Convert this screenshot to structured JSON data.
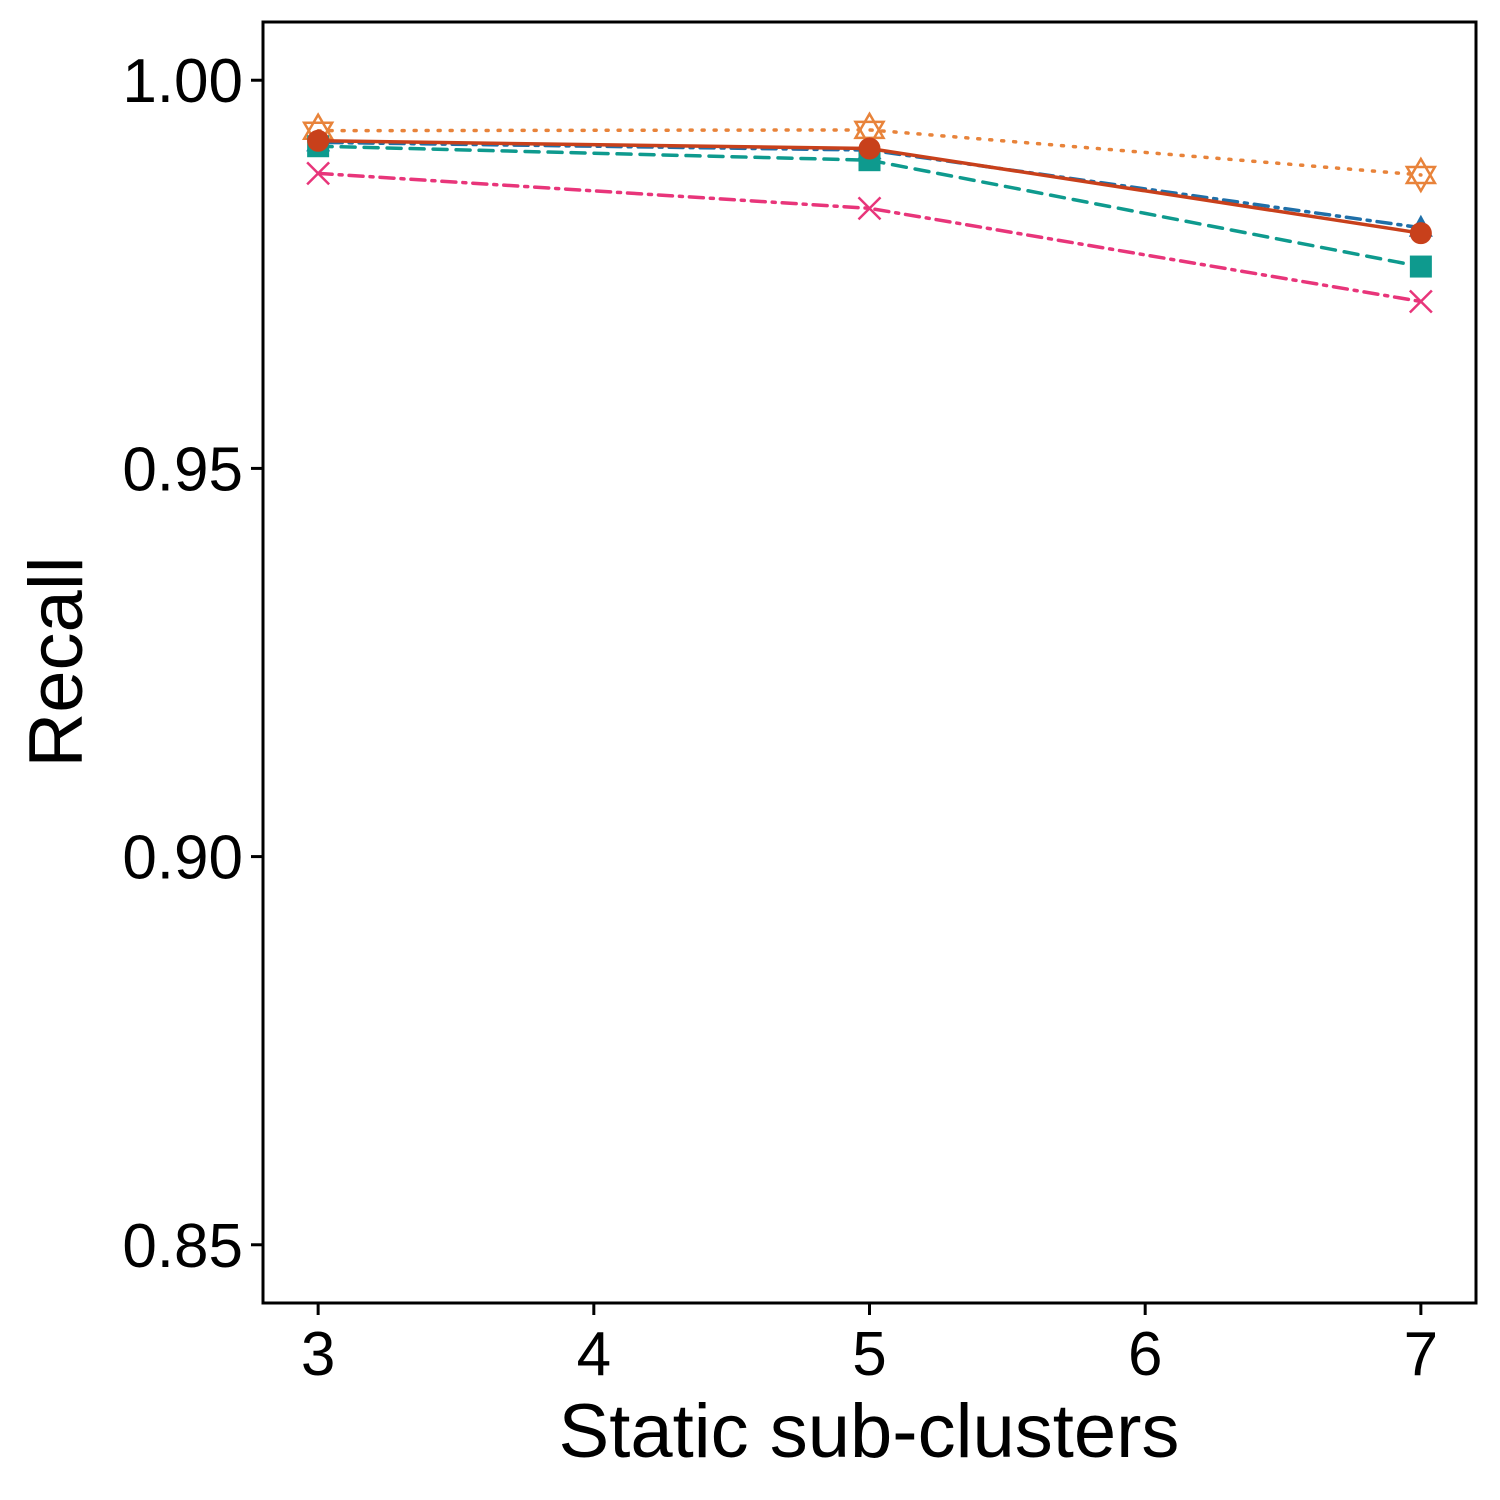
{
  "chart_data": {
    "type": "line",
    "title": "",
    "xlabel": "Static sub-clusters",
    "ylabel": "Recall",
    "x": [
      3,
      5,
      7
    ],
    "xticks": [
      3,
      4,
      5,
      6,
      7
    ],
    "xtick_labels": [
      "3",
      "4",
      "5",
      "6",
      "7"
    ],
    "xlim": [
      2.8,
      7.2
    ],
    "ylim": [
      0.8425,
      1.0075
    ],
    "yticks": [
      0.85,
      0.9,
      0.95,
      1.0
    ],
    "ytick_labels": [
      "0.85",
      "0.90",
      "0.95",
      "1.00"
    ],
    "grid": false,
    "legend": "none",
    "series": [
      {
        "values": [
          0.9935,
          0.9936,
          0.9878
        ],
        "color": "#E8833A",
        "dash": "dotted",
        "marker": "star-of-david"
      },
      {
        "values": [
          0.992,
          0.991,
          0.981
        ],
        "color": "#1F6FA8",
        "dash": "dotdash",
        "marker": "triangle"
      },
      {
        "values": [
          0.9915,
          0.9897,
          0.976
        ],
        "color": "#0E9A8E",
        "dash": "dashed",
        "marker": "square"
      },
      {
        "values": [
          0.988,
          0.9835,
          0.9715
        ],
        "color": "#E8357A",
        "dash": "dashdot",
        "marker": "cross"
      },
      {
        "values": [
          0.9922,
          0.9912,
          0.9803
        ],
        "color": "#C8401B",
        "dash": "solid",
        "marker": "circle"
      }
    ]
  }
}
